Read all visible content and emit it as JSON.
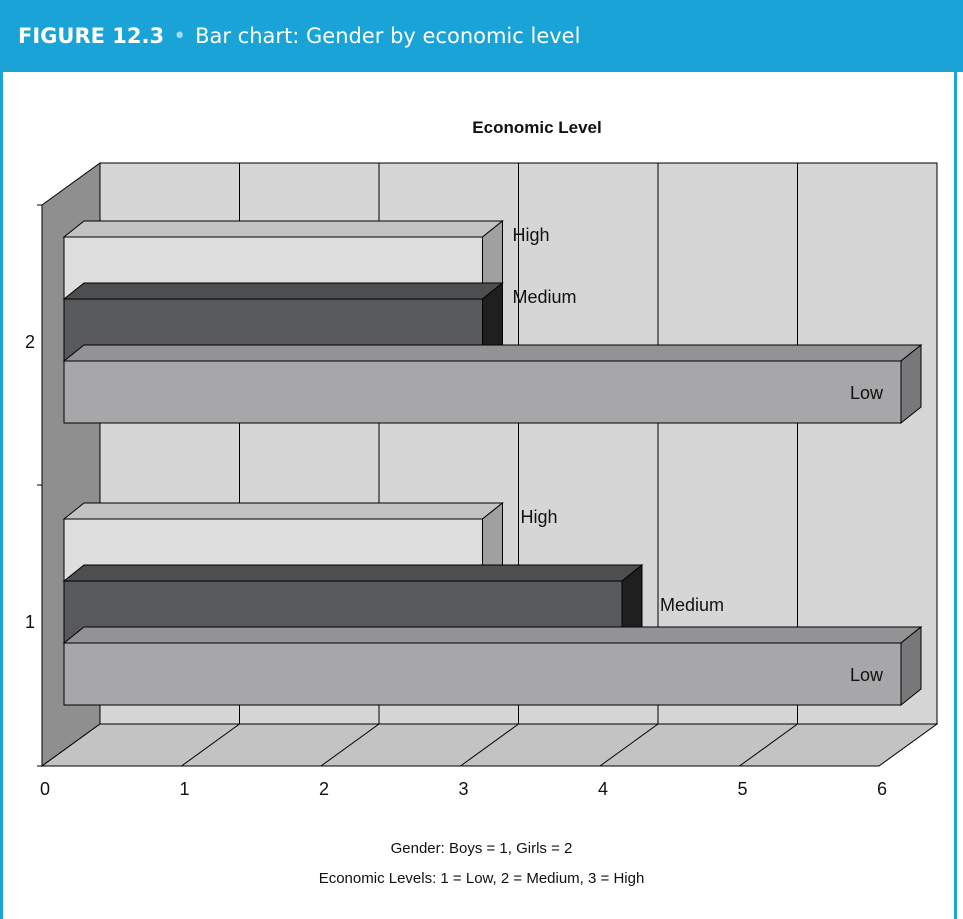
{
  "figure": {
    "label": "FIGURE 12.3",
    "separator": "•",
    "title": "Bar chart: Gender by economic level"
  },
  "colors": {
    "banner": "#1aa3d6",
    "wall": "#d6d6d6",
    "side_wall": "#8f8f8f",
    "floor": "#c3c3c3",
    "high_bar": "#dedede",
    "medium_bar": "#58595b",
    "low_bar": "#a7a7a9"
  },
  "chart_data": {
    "type": "bar",
    "orientation": "horizontal",
    "three_d": true,
    "title": "Economic Level",
    "categories": [
      "1",
      "2"
    ],
    "series": [
      {
        "name": "Low",
        "values": [
          6,
          6
        ]
      },
      {
        "name": "Medium",
        "values": [
          4,
          3
        ]
      },
      {
        "name": "High",
        "values": [
          3,
          3
        ]
      }
    ],
    "xlim": [
      0,
      6
    ],
    "x_ticks": [
      "0",
      "1",
      "2",
      "3",
      "4",
      "5",
      "6"
    ],
    "grid": true
  },
  "captions": [
    "Gender: Boys = 1, Girls = 2",
    "Economic Levels:  1 = Low, 2 = Medium, 3 = High"
  ]
}
